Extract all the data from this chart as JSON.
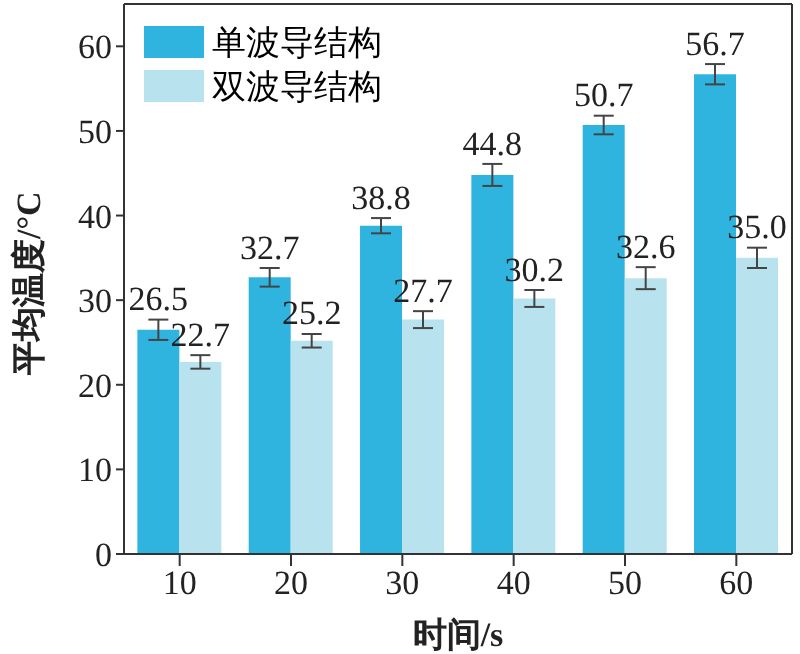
{
  "chart_data": {
    "type": "bar",
    "xlabel": "时间/s",
    "ylabel": "平均温度/°C",
    "categories": [
      "10",
      "20",
      "30",
      "40",
      "50",
      "60"
    ],
    "ylim": [
      0,
      65
    ],
    "yticks": [
      0,
      10,
      20,
      30,
      40,
      50,
      60
    ],
    "grid": false,
    "legend": "top left",
    "series": [
      {
        "name": "单波导结构",
        "color": "#2fb4e0",
        "values": [
          26.5,
          32.7,
          38.8,
          44.8,
          50.7,
          56.7
        ],
        "errors": [
          1.2,
          1.1,
          0.9,
          1.3,
          1.1,
          1.2
        ],
        "value_labels": [
          "26.5",
          "32.7",
          "38.8",
          "44.8",
          "50.7",
          "56.7"
        ]
      },
      {
        "name": "双波导结构",
        "color": "#b9e2ef",
        "values": [
          22.7,
          25.2,
          27.7,
          30.2,
          32.6,
          35.0
        ],
        "errors": [
          0.8,
          0.8,
          1.0,
          1.0,
          1.3,
          1.2
        ],
        "value_labels": [
          "22.7",
          "25.2",
          "27.7",
          "30.2",
          "32.6",
          "35.0"
        ]
      }
    ]
  }
}
